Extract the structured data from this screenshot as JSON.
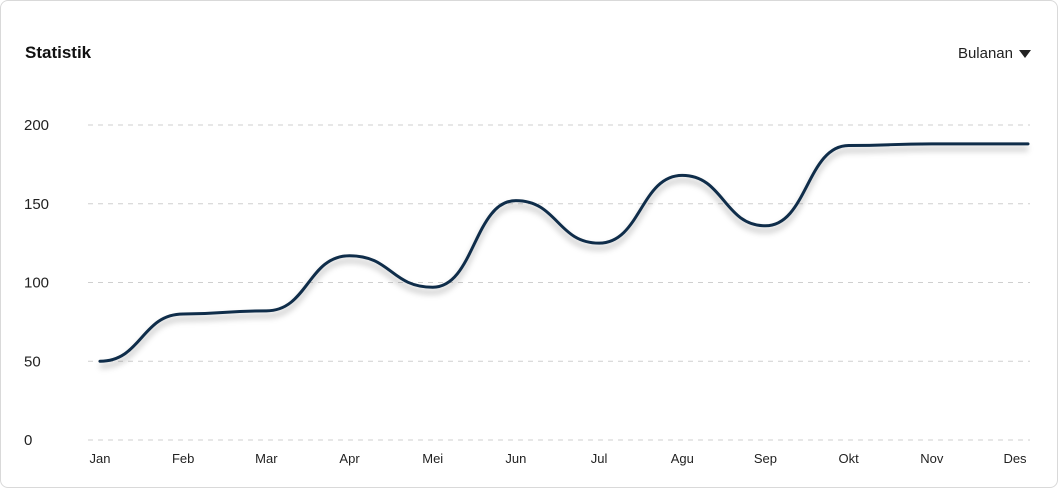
{
  "card": {
    "title": "Statistik",
    "period": "Bulanan",
    "period_icon": "caret-down-icon"
  },
  "chart_data": {
    "type": "line",
    "title": "",
    "xlabel": "",
    "ylabel": "",
    "categories": [
      "Jan",
      "Feb",
      "Mar",
      "Apr",
      "Mei",
      "Jun",
      "Jul",
      "Agu",
      "Sep",
      "Okt",
      "Nov",
      "Des"
    ],
    "yticks": [
      "0",
      "50",
      "100",
      "150",
      "200"
    ],
    "ylim": [
      0,
      200
    ],
    "grid": true,
    "line_color": "#0f2d4a",
    "series": [
      {
        "values": [
          50,
          80,
          82,
          117,
          97,
          152,
          125,
          168,
          136,
          187,
          188,
          188
        ]
      }
    ]
  }
}
